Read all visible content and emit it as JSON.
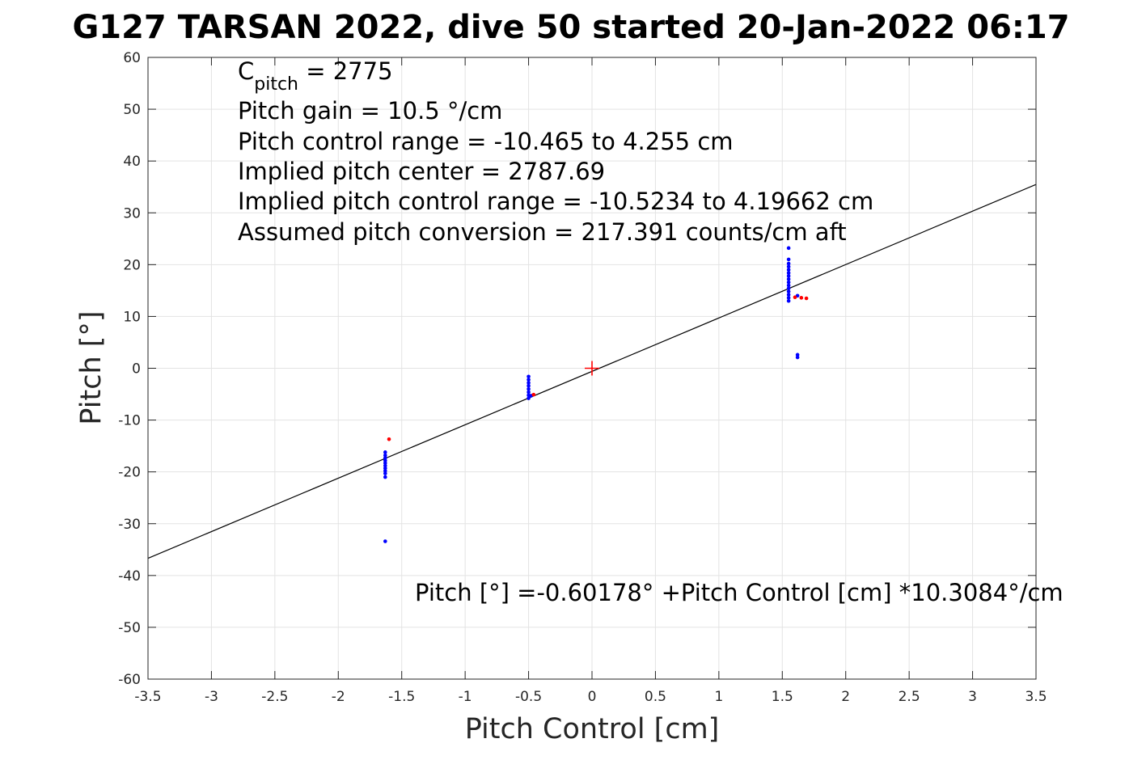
{
  "chart_data": {
    "type": "scatter",
    "title": "G127 TARSAN 2022, dive 50 started 20-Jan-2022 06:17",
    "xlabel": "Pitch Control [cm]",
    "ylabel": "Pitch [°]",
    "xlim": [
      -3.5,
      3.5
    ],
    "ylim": [
      -60,
      60
    ],
    "grid": true,
    "xticks": [
      -3.5,
      -3,
      -2.5,
      -2,
      -1.5,
      -1,
      -0.5,
      0,
      0.5,
      1,
      1.5,
      2,
      2.5,
      3,
      3.5
    ],
    "yticks": [
      -60,
      -50,
      -40,
      -30,
      -20,
      -10,
      0,
      10,
      20,
      30,
      40,
      50,
      60
    ],
    "xtick_labels": [
      "-3.5",
      "-3",
      "-2.5",
      "-2",
      "-1.5",
      "-1",
      "-0.5",
      "0",
      "0.5",
      "1",
      "1.5",
      "2",
      "2.5",
      "3",
      "3.5"
    ],
    "ytick_labels": [
      "-60",
      "-50",
      "-40",
      "-30",
      "-20",
      "-10",
      "0",
      "10",
      "20",
      "30",
      "40",
      "50",
      "60"
    ],
    "fit_line": {
      "intercept": -0.60178,
      "slope": 10.3084,
      "color": "#000000"
    },
    "center_marker": {
      "x": 0,
      "y": 0,
      "color": "#ff0000"
    },
    "series": [
      {
        "color": "#0000ff",
        "points": [
          [
            -1.63,
            -16.2
          ],
          [
            -1.63,
            -16.8
          ],
          [
            -1.63,
            -17.3
          ],
          [
            -1.63,
            -17.8
          ],
          [
            -1.63,
            -18.3
          ],
          [
            -1.63,
            -18.8
          ],
          [
            -1.63,
            -19.3
          ],
          [
            -1.63,
            -19.8
          ],
          [
            -1.63,
            -20.3
          ],
          [
            -1.63,
            -21.0
          ],
          [
            -1.63,
            -33.4
          ],
          [
            -0.5,
            -1.6
          ],
          [
            -0.5,
            -2.2
          ],
          [
            -0.5,
            -2.8
          ],
          [
            -0.5,
            -3.4
          ],
          [
            -0.5,
            -4.0
          ],
          [
            -0.5,
            -4.6
          ],
          [
            -0.5,
            -5.2
          ],
          [
            -0.5,
            -5.8
          ],
          [
            -0.48,
            -5.3
          ],
          [
            1.55,
            13.0
          ],
          [
            1.55,
            13.6
          ],
          [
            1.55,
            14.2
          ],
          [
            1.55,
            14.8
          ],
          [
            1.55,
            15.4
          ],
          [
            1.55,
            16.0
          ],
          [
            1.55,
            16.6
          ],
          [
            1.55,
            17.2
          ],
          [
            1.55,
            17.8
          ],
          [
            1.55,
            18.4
          ],
          [
            1.55,
            19.0
          ],
          [
            1.55,
            19.6
          ],
          [
            1.55,
            20.2
          ],
          [
            1.55,
            21.0
          ],
          [
            1.55,
            23.2
          ],
          [
            1.62,
            2.6
          ],
          [
            1.62,
            2.1
          ],
          [
            1.62,
            14.0
          ]
        ]
      },
      {
        "color": "#ff0000",
        "points": [
          [
            -1.6,
            -13.7
          ],
          [
            -0.46,
            -5.1
          ],
          [
            1.6,
            13.7
          ],
          [
            1.65,
            13.6
          ],
          [
            1.69,
            13.5
          ]
        ]
      }
    ],
    "annotations": {
      "cpitch_base": "C",
      "cpitch_sub": "pitch",
      "cpitch_value": " = 2775",
      "lines": [
        "Pitch gain = 10.5 °/cm",
        "Pitch control range = -10.465 to 4.255 cm",
        "Implied pitch center = 2787.69",
        "Implied pitch control range = -10.5234 to 4.19662 cm",
        "Assumed pitch conversion = 217.391 counts/cm aft"
      ],
      "fit_equation": "Pitch [°] =-0.60178° +Pitch Control [cm] *10.3084°/cm"
    }
  }
}
